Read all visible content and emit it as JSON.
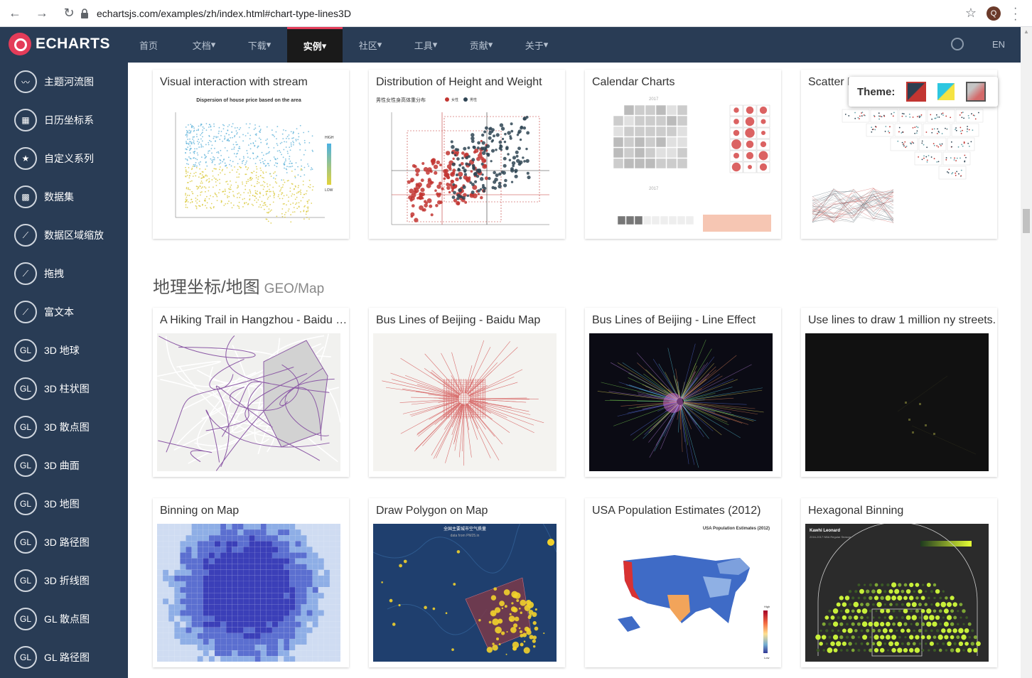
{
  "browser": {
    "url": "echartsjs.com/examples/zh/index.html#chart-type-lines3D",
    "profile_initial": "Q"
  },
  "header": {
    "logo_text": "ECHARTS",
    "nav": [
      {
        "label": "首页",
        "arrow": ""
      },
      {
        "label": "文档",
        "arrow": "▾"
      },
      {
        "label": "下载",
        "arrow": "▾"
      },
      {
        "label": "实例",
        "arrow": "▾",
        "active": true
      },
      {
        "label": "社区",
        "arrow": "▾"
      },
      {
        "label": "工具",
        "arrow": "▾"
      },
      {
        "label": "贡献",
        "arrow": "▾"
      },
      {
        "label": "关于",
        "arrow": "▾"
      }
    ],
    "lang": "EN"
  },
  "sidebar": {
    "items": [
      {
        "label": "主题河流图",
        "icon": "themeriver-icon",
        "glyph": "〰"
      },
      {
        "label": "日历坐标系",
        "icon": "calendar-icon",
        "glyph": "▦"
      },
      {
        "label": "自定义系列",
        "icon": "custom-icon",
        "glyph": "★"
      },
      {
        "label": "数据集",
        "icon": "dataset-icon",
        "glyph": "▩"
      },
      {
        "label": "数据区域缩放",
        "icon": "datazoom-icon",
        "glyph": "⟋"
      },
      {
        "label": "拖拽",
        "icon": "drag-icon",
        "glyph": "⟋"
      },
      {
        "label": "富文本",
        "icon": "richtext-icon",
        "glyph": "⟋"
      },
      {
        "label": "3D 地球",
        "icon": "gl-icon",
        "glyph": "GL"
      },
      {
        "label": "3D 柱状图",
        "icon": "gl-icon",
        "glyph": "GL"
      },
      {
        "label": "3D 散点图",
        "icon": "gl-icon",
        "glyph": "GL"
      },
      {
        "label": "3D 曲面",
        "icon": "gl-icon",
        "glyph": "GL"
      },
      {
        "label": "3D 地图",
        "icon": "gl-icon",
        "glyph": "GL"
      },
      {
        "label": "3D 路径图",
        "icon": "gl-icon",
        "glyph": "GL"
      },
      {
        "label": "3D 折线图",
        "icon": "gl-icon",
        "glyph": "GL"
      },
      {
        "label": "GL 散点图",
        "icon": "gl-icon",
        "glyph": "GL"
      },
      {
        "label": "GL 路径图",
        "icon": "gl-icon",
        "glyph": "GL"
      }
    ]
  },
  "theme": {
    "label": "Theme:"
  },
  "section": {
    "title": "地理坐标/地图",
    "subtitle": "GEO/Map"
  },
  "cards_row1": [
    {
      "title": "Visual interaction with stream",
      "thumb_title": "Dispersion of house price based on the area",
      "legend_high": "HIGH",
      "legend_low": "LOW"
    },
    {
      "title": "Distribution of Height and Weight",
      "thumb_title": "男性女性身高体重分布",
      "legend_a": "女性",
      "legend_b": "男性"
    },
    {
      "title": "Calendar Charts",
      "year": "2017"
    },
    {
      "title": "Scatter Matrix"
    }
  ],
  "cards_row2": [
    {
      "title": "A Hiking Trail in Hangzhou - Baidu Map"
    },
    {
      "title": "Bus Lines of Beijing - Baidu Map"
    },
    {
      "title": "Bus Lines of Beijing - Line Effect"
    },
    {
      "title": "Use lines to draw 1 million ny streets."
    }
  ],
  "cards_row3": [
    {
      "title": "Binning on Map"
    },
    {
      "title": "Draw Polygon on Map",
      "thumb_title": "全国主要城市空气质量",
      "thumb_sub": "data from PM25.in"
    },
    {
      "title": "USA Population Estimates (2012)",
      "thumb_title": "USA Population Estimates (2012)",
      "legend_high": "High",
      "legend_low": "Low"
    },
    {
      "title": "Hexagonal Binning",
      "thumb_title": "Kawhi Leonard",
      "thumb_sub": "2016-2017 NBA Regular Season"
    }
  ]
}
